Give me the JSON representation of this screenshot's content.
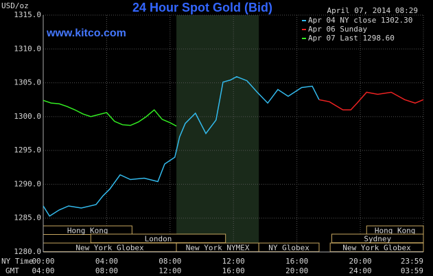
{
  "chart_data": {
    "type": "line",
    "title": "24 Hour Spot Gold (Bid)",
    "subtitle": "www.kitco.com",
    "ylabel": "USD/oz",
    "timestamp": "April 07, 2014 08:29",
    "xlabel": "NY Time",
    "x2label": "GMT",
    "xlim": [
      0,
      23.98
    ],
    "ylim": [
      1280,
      1315
    ],
    "yticks": [
      {
        "value": 1280,
        "label": "1280.0"
      },
      {
        "value": 1285,
        "label": "1285.0"
      },
      {
        "value": 1290,
        "label": "1290.0"
      },
      {
        "value": 1295,
        "label": "1295.0"
      },
      {
        "value": 1300,
        "label": "1300.0"
      },
      {
        "value": 1305,
        "label": "1305.0"
      },
      {
        "value": 1310,
        "label": "1310.0"
      },
      {
        "value": 1315,
        "label": "1315.0"
      }
    ],
    "xticks": [
      {
        "value": 0,
        "label": "00:00"
      },
      {
        "value": 4,
        "label": "04:00"
      },
      {
        "value": 8,
        "label": "08:00"
      },
      {
        "value": 12,
        "label": "12:00"
      },
      {
        "value": 16,
        "label": "16:00"
      },
      {
        "value": 20,
        "label": "20:00"
      },
      {
        "value": 23.98,
        "label": "23:59"
      }
    ],
    "x2ticks": [
      {
        "value": 0,
        "label": "04:00"
      },
      {
        "value": 4,
        "label": "08:00"
      },
      {
        "value": 8,
        "label": "12:00"
      },
      {
        "value": 12,
        "label": "16:00"
      },
      {
        "value": 16,
        "label": "20:00"
      },
      {
        "value": 20,
        "label": "24:00"
      },
      {
        "value": 23.98,
        "label": "03:59"
      }
    ],
    "grid": true,
    "highlight": {
      "xlim": [
        8.4,
        13.6
      ],
      "color": "#1a2a1a"
    },
    "sessions": [
      {
        "name": "Hong Kong",
        "start": 0,
        "end": 5.6,
        "row": 0
      },
      {
        "name": "Hong Kong",
        "start": 20.4,
        "end": 23.98,
        "row": 0
      },
      {
        "name": "London",
        "start": 3,
        "end": 11.5,
        "row": 1
      },
      {
        "name": "Sydney",
        "start": 18.2,
        "end": 23.98,
        "row": 1
      },
      {
        "name": "New York Globex",
        "start": 0,
        "end": 8.4,
        "row": 2
      },
      {
        "name": "New York NYMEX",
        "start": 8.4,
        "end": 13.6,
        "row": 2
      },
      {
        "name": "NY Globex",
        "start": 13.6,
        "end": 17.4,
        "row": 2
      },
      {
        "name": "New York Globex",
        "start": 18.1,
        "end": 23.98,
        "row": 2
      }
    ],
    "series": [
      {
        "name": "Apr 04 NY close 1302.30",
        "color": "#33bbee",
        "x": [
          0,
          0.4,
          1.0,
          1.6,
          2.4,
          3.33,
          3.77,
          4.2,
          4.85,
          5.5,
          6.37,
          7.23,
          7.66,
          8.3,
          8.6,
          8.96,
          9.6,
          10.26,
          10.9,
          11.34,
          11.8,
          12.2,
          12.85,
          13.5,
          14.16,
          14.8,
          15.45,
          16.3,
          16.97,
          17.4
        ],
        "values": [
          1286.8,
          1285.3,
          1286.2,
          1286.8,
          1286.5,
          1287.0,
          1288.3,
          1289.3,
          1291.4,
          1290.7,
          1290.9,
          1290.4,
          1293.0,
          1294.0,
          1297.0,
          1299.0,
          1300.5,
          1297.5,
          1299.5,
          1305.1,
          1305.4,
          1305.9,
          1305.3,
          1303.6,
          1302.0,
          1304.0,
          1303.0,
          1304.3,
          1304.5,
          1302.5
        ]
      },
      {
        "name": "Apr 06 Sunday",
        "color": "#ee2222",
        "x": [
          17.4,
          18.05,
          18.9,
          19.4,
          19.8,
          20.4,
          21.1,
          21.95,
          22.8,
          23.46,
          23.98
        ],
        "values": [
          1302.5,
          1302.2,
          1301.0,
          1301.0,
          1302.0,
          1303.6,
          1303.3,
          1303.6,
          1302.5,
          1302.0,
          1302.5
        ]
      },
      {
        "name": "Apr 07 Last 1298.60",
        "color": "#33ee22",
        "x": [
          0,
          0.5,
          1.0,
          1.5,
          2.0,
          2.5,
          3.0,
          3.5,
          4.0,
          4.5,
          5.0,
          5.5,
          6.0,
          6.5,
          7.0,
          7.5,
          8.0,
          8.4
        ],
        "values": [
          1302.4,
          1302.0,
          1301.9,
          1301.5,
          1301.0,
          1300.4,
          1300.0,
          1300.3,
          1300.6,
          1299.3,
          1298.8,
          1298.7,
          1299.2,
          1300.0,
          1301.0,
          1299.6,
          1299.1,
          1298.6
        ]
      }
    ]
  }
}
